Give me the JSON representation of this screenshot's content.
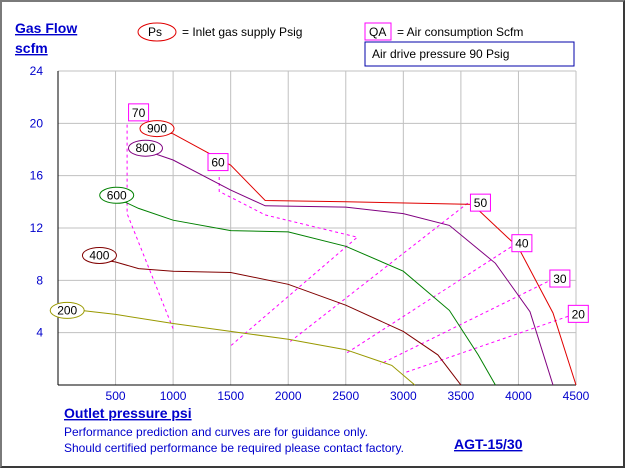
{
  "title": "Gas Flow",
  "title_unit": "scfm",
  "legend": {
    "ps_symbol": "Ps",
    "ps_text": "= Inlet gas supply  Psig",
    "qa_symbol": "QA",
    "qa_text": "= Air consumption  Scfm",
    "drive_pressure": "Air drive pressure  90 Psig"
  },
  "footer": {
    "xlabel": "Outlet pressure   psi",
    "note1": "Performance prediction and curves are for guidance only.",
    "note2": "Should certified performance be required please contact factory.",
    "model": "AGT-15/30"
  },
  "colors": {
    "axis_text": "#0000cc",
    "grid": "#c0c0c0",
    "qa_line": "#ff00ff",
    "ps_200": "#999900",
    "ps_400": "#800000",
    "ps_600": "#008000",
    "ps_800": "#800080",
    "ps_900": "#e00000"
  },
  "chart_data": {
    "type": "line",
    "title": "Gas Flow",
    "ylabel": "scfm",
    "xlabel": "Outlet pressure   psi",
    "xlim": [
      0,
      4500
    ],
    "ylim": [
      0,
      24
    ],
    "xticks": [
      500,
      1000,
      1500,
      2000,
      2500,
      3000,
      3500,
      4000,
      4500
    ],
    "yticks": [
      4,
      8,
      12,
      16,
      20,
      24
    ],
    "grid": true,
    "series": [
      {
        "name": "200",
        "kind": "Ps",
        "label_at": [
          80,
          5.7
        ],
        "points": [
          [
            0,
            5.9
          ],
          [
            500,
            5.4
          ],
          [
            1000,
            4.7
          ],
          [
            1500,
            4.1
          ],
          [
            2000,
            3.5
          ],
          [
            2500,
            2.7
          ],
          [
            2900,
            1.5
          ],
          [
            3100,
            0
          ]
        ]
      },
      {
        "name": "400",
        "kind": "Ps",
        "label_at": [
          360,
          9.9
        ],
        "points": [
          [
            300,
            9.7
          ],
          [
            500,
            9.4
          ],
          [
            700,
            8.9
          ],
          [
            1000,
            8.7
          ],
          [
            1500,
            8.6
          ],
          [
            2000,
            7.7
          ],
          [
            2500,
            6.1
          ],
          [
            3000,
            4.1
          ],
          [
            3300,
            2.3
          ],
          [
            3500,
            0
          ]
        ]
      },
      {
        "name": "600",
        "kind": "Ps",
        "label_at": [
          510,
          14.5
        ],
        "points": [
          [
            480,
            14.4
          ],
          [
            700,
            13.5
          ],
          [
            1000,
            12.6
          ],
          [
            1500,
            11.8
          ],
          [
            2000,
            11.7
          ],
          [
            2500,
            10.6
          ],
          [
            3000,
            8.7
          ],
          [
            3400,
            5.7
          ],
          [
            3650,
            2.3
          ],
          [
            3800,
            0
          ]
        ]
      },
      {
        "name": "800",
        "kind": "Ps",
        "label_at": [
          760,
          18.1
        ],
        "points": [
          [
            700,
            18.1
          ],
          [
            1000,
            17.2
          ],
          [
            1500,
            14.9
          ],
          [
            1800,
            13.7
          ],
          [
            2500,
            13.6
          ],
          [
            3000,
            13.1
          ],
          [
            3400,
            12.2
          ],
          [
            3800,
            9.3
          ],
          [
            4100,
            5.6
          ],
          [
            4300,
            0
          ]
        ]
      },
      {
        "name": "900",
        "kind": "Ps",
        "label_at": [
          860,
          19.6
        ],
        "points": [
          [
            800,
            19.6
          ],
          [
            1000,
            19.2
          ],
          [
            1500,
            16.8
          ],
          [
            1800,
            14.1
          ],
          [
            2500,
            14.0
          ],
          [
            3600,
            13.8
          ],
          [
            4000,
            10.5
          ],
          [
            4300,
            5.5
          ],
          [
            4500,
            0
          ]
        ]
      }
    ],
    "air_consumption": [
      {
        "name": "70",
        "label_at": [
          700,
          20.8
        ],
        "points": [
          [
            600,
            19.9
          ],
          [
            600,
            13.1
          ],
          [
            1000,
            4.3
          ]
        ]
      },
      {
        "name": "60",
        "label_at": [
          1390,
          17.0
        ],
        "points": [
          [
            1400,
            15.9
          ],
          [
            1400,
            14.8
          ],
          [
            1800,
            13.0
          ],
          [
            2600,
            11.3
          ],
          [
            1500,
            3.0
          ]
        ]
      },
      {
        "name": "50",
        "label_at": [
          3670,
          13.9
        ],
        "points": [
          [
            3560,
            13.9
          ],
          [
            2000,
            3.2
          ]
        ]
      },
      {
        "name": "40",
        "label_at": [
          4030,
          10.8
        ],
        "points": [
          [
            3980,
            10.8
          ],
          [
            2500,
            2.4
          ]
        ]
      },
      {
        "name": "30",
        "label_at": [
          4360,
          8.1
        ],
        "points": [
          [
            4300,
            8.1
          ],
          [
            2800,
            1.6
          ]
        ]
      },
      {
        "name": "20",
        "label_at": [
          4520,
          5.4
        ],
        "points": [
          [
            4480,
            5.4
          ],
          [
            3000,
            0.9
          ]
        ]
      }
    ]
  }
}
